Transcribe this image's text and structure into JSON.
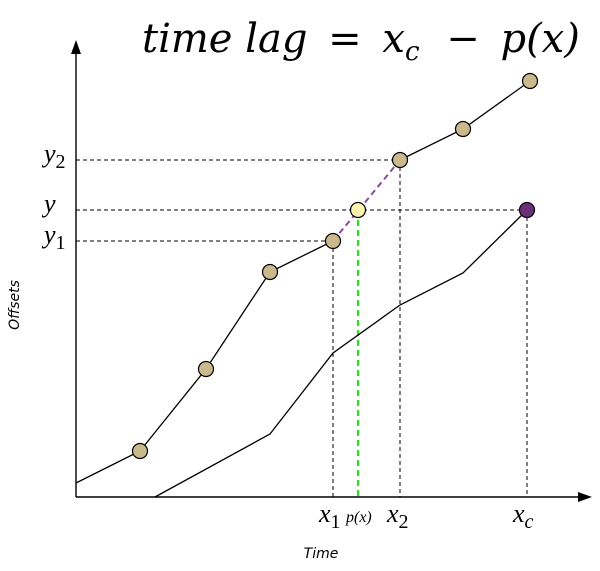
{
  "title": {
    "lhs": "time lag",
    "eq": "=",
    "x": "x",
    "x_sub": "c",
    "minus": "−",
    "func": "p(x)"
  },
  "axes": {
    "y_label": "Offsets",
    "x_label": "Time"
  },
  "y_markers": {
    "y2": {
      "base": "y",
      "sub": "2"
    },
    "y": {
      "base": "y"
    },
    "y1": {
      "base": "y",
      "sub": "1"
    }
  },
  "x_markers": {
    "x1": {
      "base": "x",
      "sub": "1"
    },
    "px": {
      "label": "p(x)"
    },
    "x2": {
      "base": "x",
      "sub": "2"
    },
    "xc": {
      "base": "x",
      "sub": "c"
    }
  },
  "colors": {
    "point_fill": "#c9b98c",
    "interp_fill": "#fff3b0",
    "target_fill": "#6b2f7a",
    "interp_segment": "#8a4c9a",
    "projection": "#33dd22"
  }
}
